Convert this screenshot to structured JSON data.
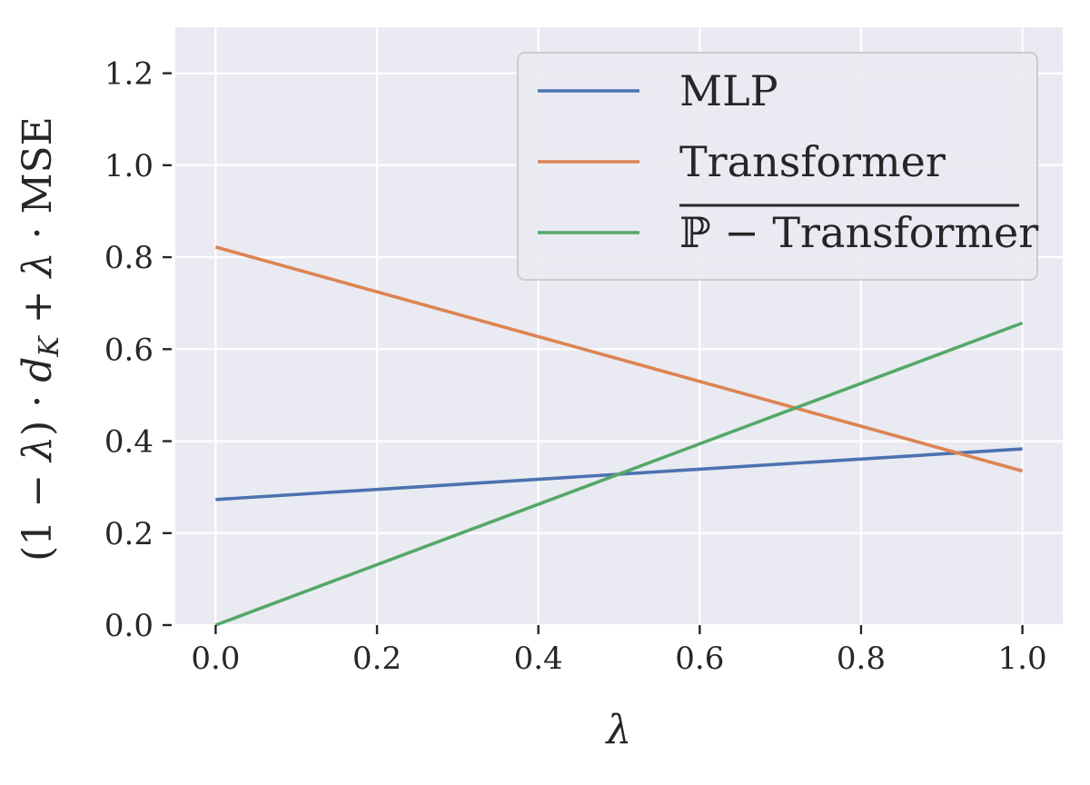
{
  "chart_data": {
    "type": "line",
    "xlabel": "λ",
    "ylabel": "(1 − λ) · d_K + λ · MSE",
    "ylabel_parts": {
      "p1": "(1 − ",
      "lambda": "λ",
      "p2": ") · ",
      "d": "d",
      "K": "K",
      "p3": " + ",
      "lambda2": "λ",
      "p4": " · MSE"
    },
    "xlim": [
      -0.05,
      1.05
    ],
    "ylim": [
      0.0,
      1.3
    ],
    "xticks": [
      0.0,
      0.2,
      0.4,
      0.6,
      0.8,
      1.0
    ],
    "xtick_labels": [
      "0.0",
      "0.2",
      "0.4",
      "0.6",
      "0.8",
      "1.0"
    ],
    "yticks": [
      0.0,
      0.2,
      0.4,
      0.6,
      0.8,
      1.0,
      1.2
    ],
    "ytick_labels": [
      "0.0",
      "0.2",
      "0.4",
      "0.6",
      "0.8",
      "1.0",
      "1.2"
    ],
    "grid": true,
    "legend_position": "top-right",
    "series": [
      {
        "name": "MLP",
        "color": "#4c72b0",
        "x": [
          0.0,
          1.0
        ],
        "y": [
          0.273,
          0.383
        ]
      },
      {
        "name": "Transformer",
        "color": "#dd8452",
        "x": [
          0.0,
          1.0
        ],
        "y": [
          0.822,
          0.335
        ]
      },
      {
        "name": "ℙ − Transformer",
        "overline": true,
        "color": "#55a868",
        "x": [
          0.0,
          1.0
        ],
        "y": [
          0.0,
          0.657
        ]
      }
    ],
    "colors": {
      "plot_background": "#eaeaf2",
      "grid": "#ffffff",
      "legend_background": "#eaeaf2",
      "legend_border": "#cccccc",
      "text": "#262626"
    }
  }
}
